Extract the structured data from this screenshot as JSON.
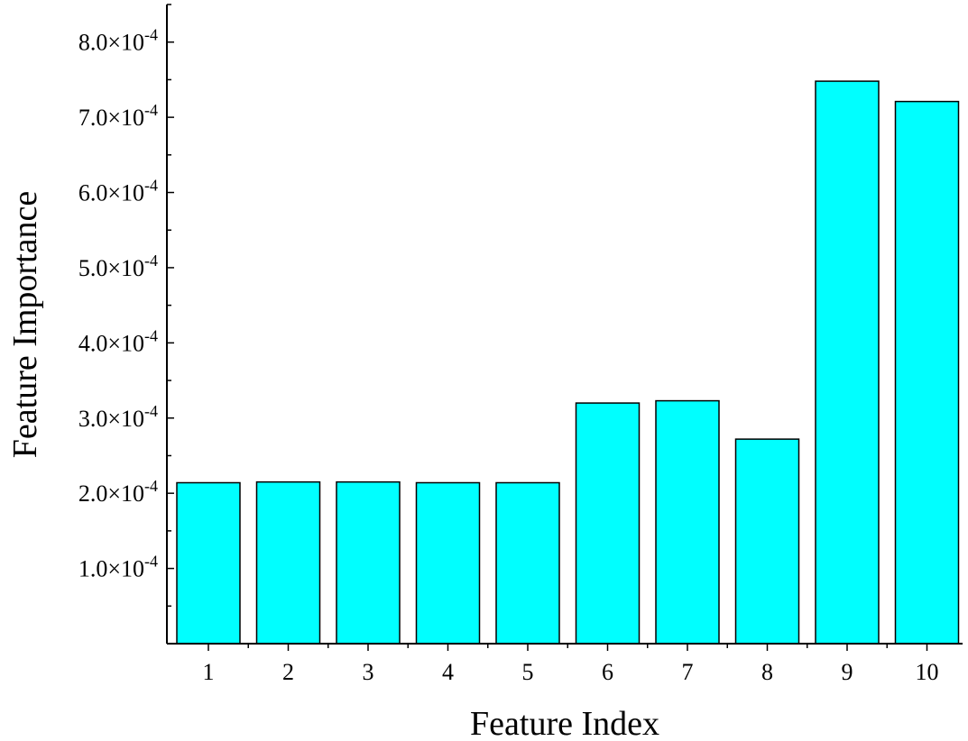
{
  "chart_data": {
    "type": "bar",
    "categories": [
      "1",
      "2",
      "3",
      "4",
      "5",
      "6",
      "7",
      "8",
      "9",
      "10"
    ],
    "values": [
      0.000214,
      0.000215,
      0.000215,
      0.000214,
      0.000214,
      0.00032,
      0.000323,
      0.000272,
      0.000748,
      0.000721
    ],
    "xlabel": "Feature Index",
    "ylabel": "Feature Importance",
    "ylim": [
      0,
      0.00085
    ],
    "yticks": [
      {
        "value": 0.0001,
        "mantissa": "1.0",
        "exponent": "-4"
      },
      {
        "value": 0.0002,
        "mantissa": "2.0",
        "exponent": "-4"
      },
      {
        "value": 0.0003,
        "mantissa": "3.0",
        "exponent": "-4"
      },
      {
        "value": 0.0004,
        "mantissa": "4.0",
        "exponent": "-4"
      },
      {
        "value": 0.0005,
        "mantissa": "5.0",
        "exponent": "-4"
      },
      {
        "value": 0.0006,
        "mantissa": "6.0",
        "exponent": "-4"
      },
      {
        "value": 0.0007,
        "mantissa": "7.0",
        "exponent": "-4"
      },
      {
        "value": 0.0008,
        "mantissa": "8.0",
        "exponent": "-4"
      }
    ],
    "bar_color": "#00FFFF",
    "bar_edge_color": "#000000",
    "grid": false
  }
}
